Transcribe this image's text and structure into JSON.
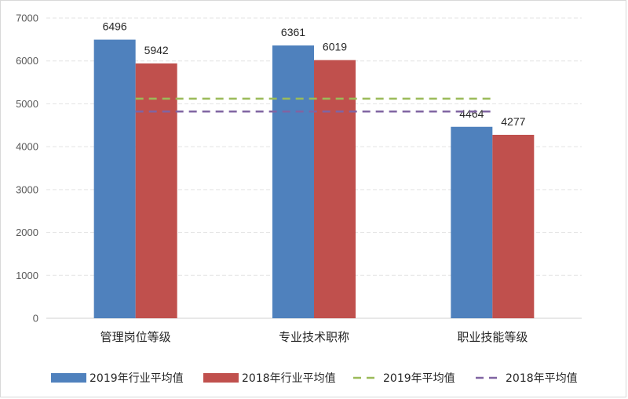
{
  "chart_data": {
    "type": "bar",
    "categories": [
      "管理岗位等级",
      "专业技术职称",
      "职业技能等级"
    ],
    "series": [
      {
        "name": "2019年行业平均值",
        "values": [
          6496,
          6361,
          4464
        ],
        "color": "#4f81bd"
      },
      {
        "name": "2018年行业平均值",
        "values": [
          5942,
          6019,
          4277
        ],
        "color": "#c0504d"
      }
    ],
    "reference_lines": [
      {
        "name": "2019年平均值",
        "value": 5120,
        "color": "#9bbb59",
        "style": "dashed"
      },
      {
        "name": "2018年平均值",
        "value": 4820,
        "color": "#8064a2",
        "style": "dashed"
      }
    ],
    "ylim": [
      0,
      7000
    ],
    "yticks": [
      0,
      1000,
      2000,
      3000,
      4000,
      5000,
      6000,
      7000
    ],
    "grid": true,
    "legend_position": "bottom",
    "title": "",
    "xlabel": "",
    "ylabel": ""
  }
}
